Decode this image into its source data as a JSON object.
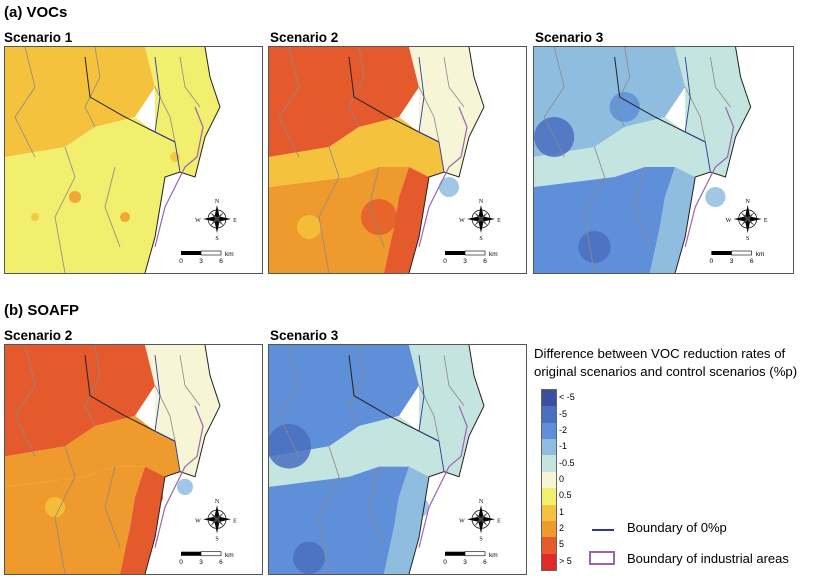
{
  "sections": {
    "a": "(a) VOCs",
    "b": "(b) SOAFP"
  },
  "panels": [
    {
      "id": "a1",
      "title": "Scenario 1"
    },
    {
      "id": "a2",
      "title": "Scenario 2"
    },
    {
      "id": "a3",
      "title": "Scenario 3"
    },
    {
      "id": "b2",
      "title": "Scenario 2"
    },
    {
      "id": "b3",
      "title": "Scenario 3"
    }
  ],
  "scale_bar": {
    "ticks": [
      "0",
      "3",
      "6"
    ],
    "unit": "km"
  },
  "compass": {
    "n": "N",
    "s": "S",
    "e": "E",
    "w": "W"
  },
  "chart_data": {
    "type": "heatmap",
    "legend_title": "Difference between VOC reduction rates of original scenarios and control scenarios (%p)",
    "color_classes": [
      {
        "label": "< -5",
        "color": "#3a4fa0"
      },
      {
        "label": "-5",
        "color": "#4a6fc0"
      },
      {
        "label": "-2",
        "color": "#5f8fd8"
      },
      {
        "label": "-1",
        "color": "#8fbde0"
      },
      {
        "label": "-0.5",
        "color": "#c4e4e0"
      },
      {
        "label": "0",
        "color": "#f6f6d6"
      },
      {
        "label": "0.5",
        "color": "#f2ee6e"
      },
      {
        "label": "1",
        "color": "#f4c23c"
      },
      {
        "label": "2",
        "color": "#ef9a2c"
      },
      {
        "label": "5",
        "color": "#e55a2c"
      },
      {
        "label": "> 5",
        "color": "#e02a2a"
      }
    ],
    "boundaries": [
      {
        "label": "Boundary of 0%p",
        "color": "#2c3a9e"
      },
      {
        "label": "Boundary of industrial areas",
        "color": "#9b64b0"
      }
    ]
  }
}
